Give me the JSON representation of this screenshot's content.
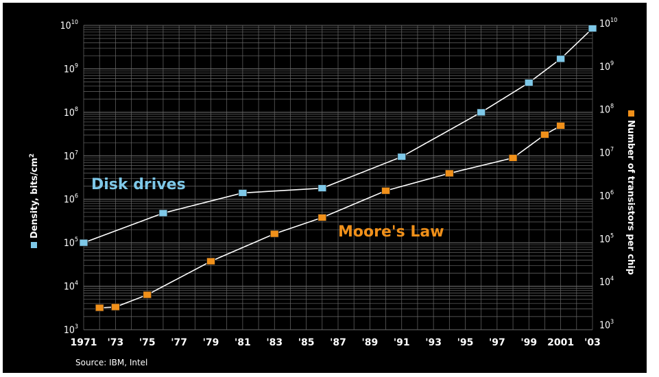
{
  "chart_data": {
    "type": "line",
    "x_tick_labels": [
      "1971",
      "'73",
      "'75",
      "'77",
      "'79",
      "'81",
      "'83",
      "'85",
      "'87",
      "'89",
      "'91",
      "'93",
      "'95",
      "'97",
      "'99",
      "2001",
      "'03"
    ],
    "x_range": [
      1971,
      2003
    ],
    "left_axis": {
      "label": "Density, bits/cm",
      "label_sup": "2",
      "scale": "log",
      "range": [
        1000,
        10000000000
      ],
      "tick_exponents": [
        3,
        4,
        5,
        6,
        7,
        8,
        9,
        10
      ]
    },
    "right_axis": {
      "label": "Number of transistors per chip",
      "scale": "log",
      "range": [
        1000,
        10000000000
      ],
      "tick_exponents": [
        3,
        4,
        5,
        6,
        7,
        8,
        9,
        10
      ]
    },
    "tick_base": "10",
    "grid": true,
    "series": [
      {
        "name": "Disk drives",
        "axis": "left",
        "color": "#7ec8e8",
        "marker": "square",
        "points": [
          {
            "x": 1971,
            "y": 100000
          },
          {
            "x": 1976,
            "y": 480000
          },
          {
            "x": 1981,
            "y": 1400000
          },
          {
            "x": 1986,
            "y": 1800000
          },
          {
            "x": 1991,
            "y": 9500000
          },
          {
            "x": 1996,
            "y": 100000000
          },
          {
            "x": 1999,
            "y": 480000000
          },
          {
            "x": 2001,
            "y": 1700000000
          },
          {
            "x": 2003,
            "y": 8500000000
          }
        ]
      },
      {
        "name": "Moore's Law",
        "axis": "right",
        "color": "#f0901a",
        "marker": "square",
        "points": [
          {
            "x": 1972,
            "y": 2500
          },
          {
            "x": 1973,
            "y": 2600
          },
          {
            "x": 1975,
            "y": 5000
          },
          {
            "x": 1979,
            "y": 30000
          },
          {
            "x": 1983,
            "y": 130000
          },
          {
            "x": 1986,
            "y": 310000
          },
          {
            "x": 1990,
            "y": 1300000
          },
          {
            "x": 1994,
            "y": 3300000
          },
          {
            "x": 1998,
            "y": 7500000
          },
          {
            "x": 2000,
            "y": 26000000
          },
          {
            "x": 2001,
            "y": 42000000
          }
        ]
      }
    ],
    "annotations": [
      "Disk drives",
      "Moore's Law"
    ],
    "source": "Source: IBM, Intel"
  }
}
